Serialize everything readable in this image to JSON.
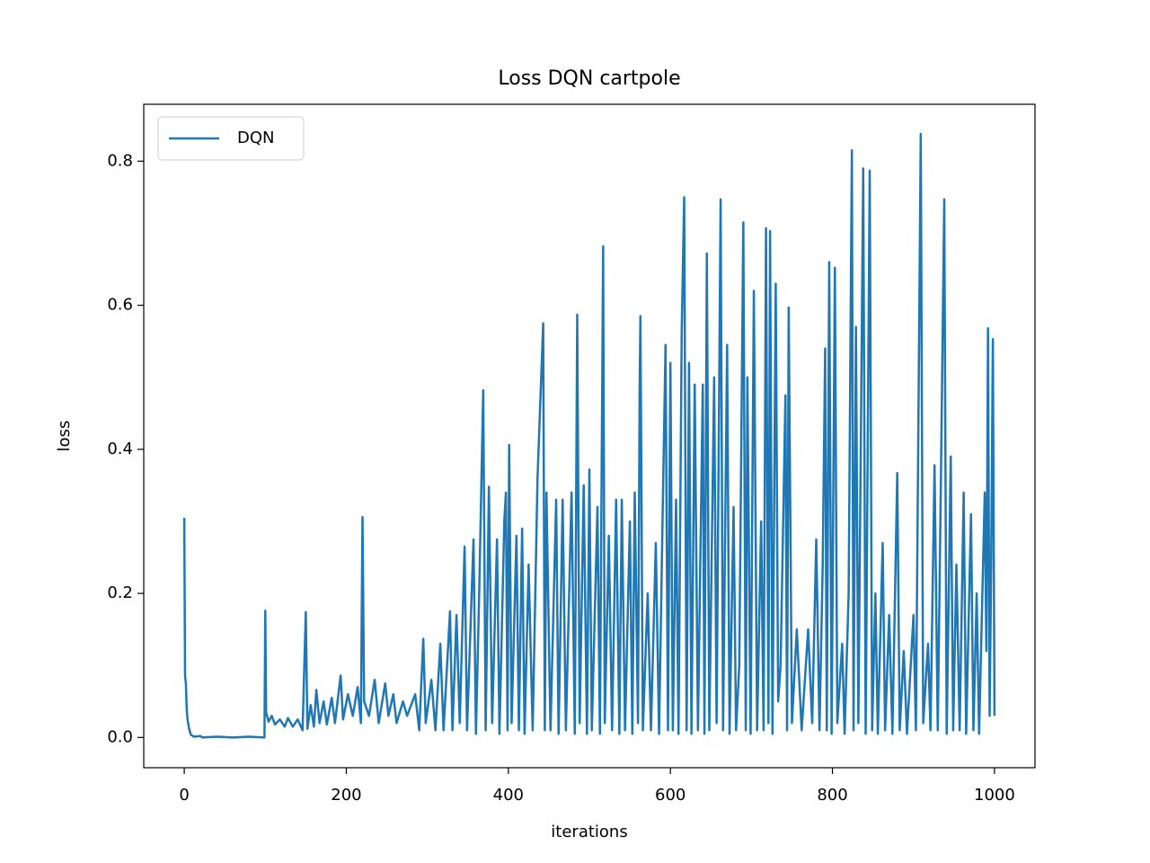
{
  "chart_data": {
    "type": "line",
    "title": "Loss DQN cartpole",
    "xlabel": "iterations",
    "ylabel": "loss",
    "xlim": [
      -50,
      1050
    ],
    "ylim": [
      -0.042,
      0.879
    ],
    "xticks": [
      0,
      200,
      400,
      600,
      800,
      1000
    ],
    "yticks": [
      {
        "value": 0,
        "label": "0.0"
      },
      0.2,
      0.4,
      0.6,
      0.8
    ],
    "legend": "upper left",
    "grid": false,
    "x": [
      0,
      1,
      2,
      3,
      4,
      6,
      8,
      12,
      20,
      22,
      40,
      60,
      80,
      99,
      100,
      101,
      104,
      108,
      112,
      118,
      124,
      128,
      134,
      140,
      146,
      150,
      152,
      156,
      160,
      163,
      167,
      172,
      176,
      182,
      186,
      193,
      196,
      202,
      208,
      214,
      218,
      220,
      222,
      228,
      235,
      240,
      248,
      252,
      258,
      262,
      270,
      275,
      285,
      290,
      295,
      298,
      305,
      310,
      316,
      320,
      328,
      331,
      336,
      340,
      346,
      349,
      357,
      360,
      364,
      369,
      372,
      376,
      380,
      386,
      389,
      395,
      397,
      399,
      401,
      404,
      410,
      413,
      417,
      420,
      425,
      430,
      436,
      443,
      445,
      447,
      452,
      459,
      462,
      467,
      471,
      478,
      482,
      485,
      488,
      493,
      497,
      500,
      503,
      510,
      513,
      517,
      519,
      524,
      528,
      533,
      537,
      540,
      544,
      550,
      553,
      556,
      560,
      562,
      563,
      566,
      572,
      576,
      582,
      586,
      590,
      594,
      597,
      600,
      603,
      607,
      610,
      614,
      617,
      620,
      623,
      626,
      630,
      634,
      640,
      642,
      645,
      648,
      654,
      657,
      662,
      665,
      670,
      673,
      678,
      681,
      685,
      690,
      693,
      695,
      699,
      703,
      707,
      712,
      715,
      718,
      721,
      723,
      726,
      730,
      733,
      736,
      742,
      744,
      746,
      750,
      756,
      762,
      770,
      775,
      780,
      784,
      788,
      791,
      793,
      796,
      799,
      803,
      806,
      812,
      815,
      820,
      824,
      826,
      829,
      832,
      838,
      841,
      846,
      849,
      853,
      856,
      862,
      865,
      870,
      874,
      880,
      883,
      888,
      892,
      900,
      903,
      909,
      912,
      918,
      921,
      926,
      930,
      934,
      938,
      941,
      946,
      949,
      953,
      957,
      962,
      965,
      971,
      974,
      978,
      981,
      988,
      990,
      992,
      994,
      996,
      998,
      1000
    ],
    "series": [
      {
        "name": "DQN",
        "color": "#1f77b4",
        "values": [
          0.305,
          0.085,
          0.075,
          0.04,
          0.025,
          0.012,
          0.004,
          0.001,
          0.002,
          0.0,
          0.001,
          0.0,
          0.001,
          0.0,
          0.176,
          0.035,
          0.022,
          0.03,
          0.018,
          0.025,
          0.015,
          0.027,
          0.015,
          0.025,
          0.01,
          0.174,
          0.012,
          0.045,
          0.015,
          0.066,
          0.02,
          0.05,
          0.018,
          0.055,
          0.02,
          0.086,
          0.025,
          0.06,
          0.03,
          0.07,
          0.02,
          0.306,
          0.05,
          0.03,
          0.08,
          0.02,
          0.075,
          0.03,
          0.06,
          0.02,
          0.05,
          0.03,
          0.06,
          0.01,
          0.137,
          0.02,
          0.08,
          0.01,
          0.13,
          0.01,
          0.175,
          0.01,
          0.17,
          0.02,
          0.265,
          0.01,
          0.275,
          0.005,
          0.2,
          0.482,
          0.01,
          0.348,
          0.02,
          0.275,
          0.005,
          0.3,
          0.34,
          0.01,
          0.406,
          0.02,
          0.28,
          0.01,
          0.29,
          0.005,
          0.24,
          0.01,
          0.36,
          0.575,
          0.01,
          0.34,
          0.01,
          0.33,
          0.005,
          0.33,
          0.01,
          0.34,
          0.005,
          0.587,
          0.02,
          0.35,
          0.005,
          0.372,
          0.01,
          0.32,
          0.005,
          0.682,
          0.02,
          0.28,
          0.01,
          0.33,
          0.005,
          0.33,
          0.01,
          0.3,
          0.005,
          0.34,
          0.02,
          0.48,
          0.585,
          0.01,
          0.2,
          0.01,
          0.27,
          0.005,
          0.28,
          0.545,
          0.01,
          0.52,
          0.01,
          0.33,
          0.005,
          0.567,
          0.75,
          0.01,
          0.52,
          0.005,
          0.49,
          0.01,
          0.49,
          0.005,
          0.672,
          0.01,
          0.5,
          0.02,
          0.747,
          0.01,
          0.545,
          0.005,
          0.32,
          0.01,
          0.1,
          0.715,
          0.01,
          0.5,
          0.005,
          0.62,
          0.01,
          0.3,
          0.01,
          0.707,
          0.02,
          0.703,
          0.005,
          0.63,
          0.05,
          0.1,
          0.475,
          0.01,
          0.597,
          0.02,
          0.15,
          0.01,
          0.15,
          0.02,
          0.275,
          0.01,
          0.24,
          0.54,
          0.01,
          0.66,
          0.005,
          0.652,
          0.02,
          0.13,
          0.005,
          0.2,
          0.815,
          0.01,
          0.57,
          0.02,
          0.79,
          0.005,
          0.787,
          0.01,
          0.2,
          0.005,
          0.27,
          0.01,
          0.17,
          0.005,
          0.367,
          0.01,
          0.12,
          0.005,
          0.17,
          0.01,
          0.838,
          0.02,
          0.13,
          0.01,
          0.378,
          0.01,
          0.37,
          0.747,
          0.005,
          0.39,
          0.01,
          0.24,
          0.01,
          0.34,
          0.005,
          0.31,
          0.01,
          0.2,
          0.005,
          0.34,
          0.12,
          0.568,
          0.03,
          0.25,
          0.553,
          0.03
        ]
      }
    ]
  }
}
